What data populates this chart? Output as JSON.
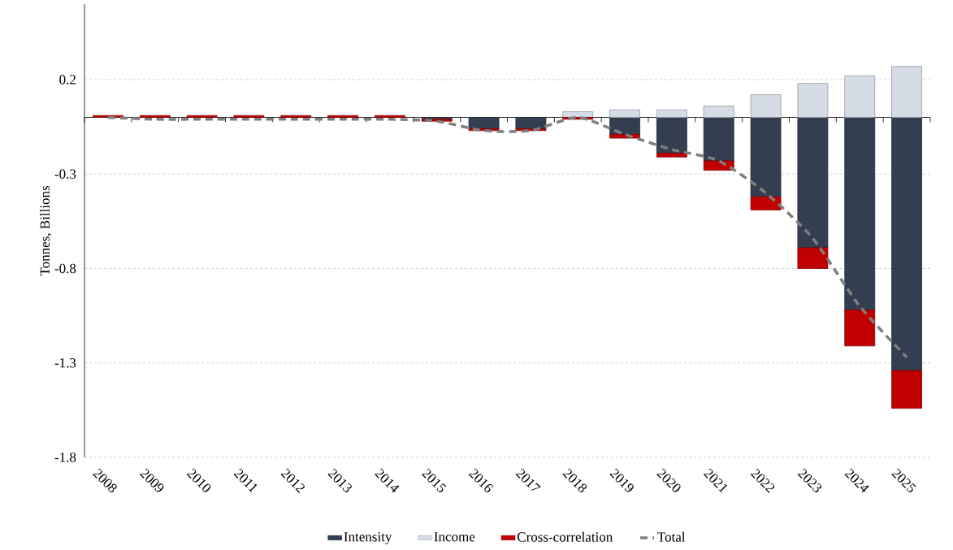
{
  "chart_data": {
    "type": "bar",
    "stacked": true,
    "ylabel": "Tonnes, Billions",
    "categories": [
      "2008",
      "2009",
      "2010",
      "2011",
      "2012",
      "2013",
      "2014",
      "2015",
      "2016",
      "2017",
      "2018",
      "2019",
      "2020",
      "2021",
      "2022",
      "2023",
      "2024",
      "2025"
    ],
    "series": [
      {
        "name": "Intensity",
        "color": "#333f50",
        "values": [
          0,
          0,
          0,
          0,
          0,
          null,
          null,
          -0.01,
          -0.06,
          -0.06,
          0,
          -0.09,
          -0.19,
          -0.23,
          -0.42,
          -0.69,
          -1.02,
          -1.34
        ]
      },
      {
        "name": "Income",
        "color": "#d6dce5",
        "values": [
          0,
          0,
          0,
          0,
          0,
          0,
          0,
          0,
          0,
          0,
          0.03,
          0.04,
          0.04,
          0.06,
          0.12,
          0.18,
          0.22,
          0.27
        ]
      },
      {
        "name": "Cross-correlation",
        "color": "#c00000",
        "values": [
          0.01,
          0.01,
          0.01,
          0.01,
          0.01,
          0.01,
          0.01,
          -0.01,
          -0.01,
          -0.01,
          -0.01,
          -0.02,
          -0.02,
          -0.05,
          -0.07,
          -0.11,
          -0.19,
          -0.2
        ]
      },
      {
        "name": "Total",
        "type": "line",
        "line_style": "dashed",
        "color": "#7f7f7f",
        "values": [
          0,
          -0.01,
          -0.01,
          -0.01,
          -0.01,
          -0.01,
          -0.01,
          -0.02,
          -0.07,
          -0.07,
          0,
          -0.09,
          -0.17,
          -0.23,
          -0.4,
          -0.64,
          -1.0,
          -1.27
        ]
      }
    ],
    "ylim": [
      -1.8,
      0.6
    ],
    "yticks": [
      0.2,
      -0.3,
      -0.8,
      -1.3,
      -1.8
    ],
    "grid": "y",
    "legend": "bottom",
    "marker": "none"
  }
}
